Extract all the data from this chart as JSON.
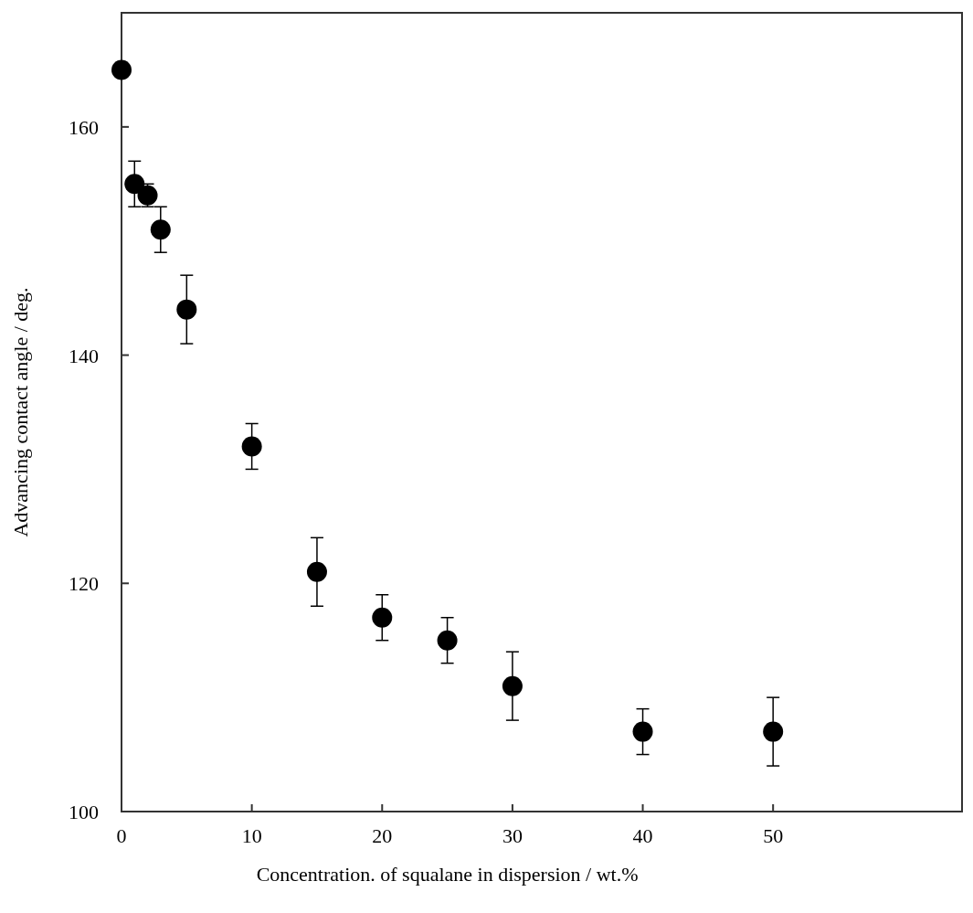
{
  "chart_data": {
    "type": "scatter",
    "xlabel": "Concentration. of squalane in dispersion / wt.%",
    "ylabel": "Advancing contact angle / deg.",
    "x": [
      0,
      1,
      2,
      3,
      5,
      10,
      15,
      20,
      25,
      30,
      40,
      50
    ],
    "values": [
      165,
      155,
      154,
      151,
      144,
      132,
      121,
      117,
      115,
      111,
      107,
      107
    ],
    "errors": [
      null,
      2,
      1,
      2,
      3,
      2,
      3,
      2,
      2,
      3,
      2,
      3
    ],
    "color": "#000000",
    "marker": "circle",
    "xlim": [
      0,
      64.5
    ],
    "xticks": [
      0,
      10,
      20,
      30,
      40,
      50
    ],
    "ylim": [
      100,
      170
    ],
    "yticks": [
      100,
      120,
      140,
      160
    ]
  }
}
